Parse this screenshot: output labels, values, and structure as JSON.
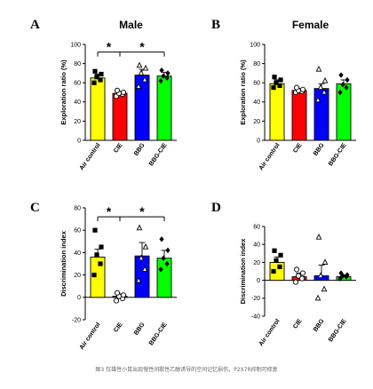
{
  "caption": "图3 仅雄性小鼠出现慢性间歇性乙醇诱导的空间记忆损伤，P2X7R抑制可修复",
  "chart_data": [
    {
      "letter": "A",
      "title": "Male",
      "type": "bar",
      "ylabel": "Exploration ratio (%)",
      "ylim": [
        0,
        100
      ],
      "yticks": [
        0,
        20,
        40,
        60,
        80,
        100
      ],
      "categories": [
        "Air control",
        "CIE",
        "BBG",
        "BBG-CIE"
      ],
      "colors": [
        "#ffff00",
        "#ff0000",
        "#0000ff",
        "#00ff00"
      ],
      "values": [
        65,
        49,
        68,
        67
      ],
      "errors": [
        4,
        2,
        6,
        4
      ],
      "points": [
        [
          60,
          63,
          66,
          69,
          72
        ],
        [
          46,
          48,
          49,
          50,
          52
        ],
        [
          56,
          63,
          70,
          75,
          78
        ],
        [
          62,
          65,
          67,
          70,
          73
        ]
      ],
      "markers": [
        "square",
        "circle",
        "triangle",
        "diamond"
      ],
      "significance": [
        {
          "from": 0,
          "to": 1,
          "y": 92,
          "label": "*"
        },
        {
          "from": 1,
          "to": 3,
          "y": 92,
          "label": "*"
        }
      ]
    },
    {
      "letter": "B",
      "title": "Female",
      "type": "bar",
      "ylabel": "Exploration ratio (%)",
      "ylim": [
        0,
        100
      ],
      "yticks": [
        0,
        20,
        40,
        60,
        80,
        100
      ],
      "categories": [
        "Air control",
        "CIE",
        "BBG",
        "BBG-CIE"
      ],
      "colors": [
        "#ffff00",
        "#ff0000",
        "#0000ff",
        "#00ff00"
      ],
      "values": [
        59,
        52,
        54,
        59
      ],
      "errors": [
        4,
        2,
        5,
        4
      ],
      "points": [
        [
          55,
          57,
          60,
          63,
          66
        ],
        [
          50,
          51,
          52,
          53,
          55
        ],
        [
          42,
          50,
          55,
          62,
          74
        ],
        [
          50,
          55,
          58,
          63,
          68
        ]
      ],
      "markers": [
        "square",
        "circle",
        "triangle",
        "diamond"
      ],
      "significance": []
    },
    {
      "letter": "C",
      "title": "",
      "type": "bar",
      "ylabel": "Discrimination index",
      "ylim": [
        -20,
        80
      ],
      "yticks": [
        -20,
        0,
        20,
        40,
        60,
        80
      ],
      "categories": [
        "Air control",
        "CIE",
        "BBG",
        "BBG-CIE"
      ],
      "colors": [
        "#ffff00",
        "#ff0000",
        "#0000ff",
        "#00ff00"
      ],
      "values": [
        36,
        1,
        37,
        35
      ],
      "errors": [
        7,
        2,
        12,
        7
      ],
      "points": [
        [
          20,
          30,
          38,
          45,
          60
        ],
        [
          -3,
          -1,
          1,
          2,
          4
        ],
        [
          15,
          25,
          35,
          45,
          62
        ],
        [
          25,
          30,
          35,
          42,
          52
        ]
      ],
      "markers": [
        "square",
        "circle",
        "triangle",
        "diamond"
      ],
      "significance": [
        {
          "from": 0,
          "to": 1,
          "y": 72,
          "label": "*"
        },
        {
          "from": 1,
          "to": 3,
          "y": 72,
          "label": "*"
        }
      ]
    },
    {
      "letter": "D",
      "title": "",
      "type": "bar",
      "ylabel": "Discrimination index",
      "ylim": [
        -40,
        60
      ],
      "yticks": [
        -40,
        -20,
        0,
        20,
        40,
        60
      ],
      "categories": [
        "Air control",
        "CIE",
        "BBG",
        "BBG-CIE"
      ],
      "colors": [
        "#ffff00",
        "#ff0000",
        "#0000ff",
        "#00ff00"
      ],
      "values": [
        20,
        4,
        5,
        4
      ],
      "errors": [
        6,
        4,
        12,
        2
      ],
      "points": [
        [
          10,
          15,
          22,
          28,
          33
        ],
        [
          -2,
          2,
          5,
          8,
          12
        ],
        [
          -20,
          -10,
          5,
          20,
          48
        ],
        [
          2,
          4,
          5,
          6,
          8
        ]
      ],
      "markers": [
        "square",
        "circle",
        "triangle",
        "diamond"
      ],
      "significance": []
    }
  ]
}
